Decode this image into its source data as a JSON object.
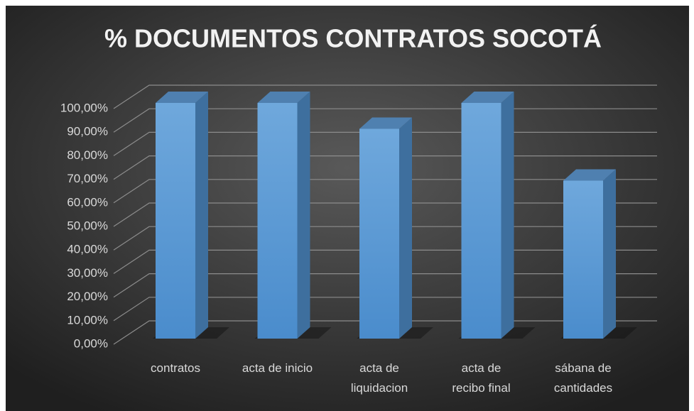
{
  "chart_data": {
    "type": "bar",
    "title": "% DOCUMENTOS CONTRATOS SOCOTÁ",
    "categories": [
      "contratos",
      "acta de inicio",
      "acta de\nliquidacion",
      "acta de\nrecibo final",
      "sábana de\ncantidades"
    ],
    "values": [
      100,
      100,
      89,
      100,
      67
    ],
    "color": "#5b9bd5",
    "ylim": [
      0,
      100
    ],
    "yticks": [
      {
        "value": 0,
        "label": "0,00%"
      },
      {
        "value": 10,
        "label": "10,00%"
      },
      {
        "value": 20,
        "label": "20,00%"
      },
      {
        "value": 30,
        "label": "30,00%"
      },
      {
        "value": 40,
        "label": "40,00%"
      },
      {
        "value": 50,
        "label": "50,00%"
      },
      {
        "value": 60,
        "label": "60,00%"
      },
      {
        "value": 70,
        "label": "70,00%"
      },
      {
        "value": 80,
        "label": "80,00%"
      },
      {
        "value": 90,
        "label": "90,00%"
      },
      {
        "value": 100,
        "label": "100,00%"
      }
    ],
    "grid": true
  }
}
